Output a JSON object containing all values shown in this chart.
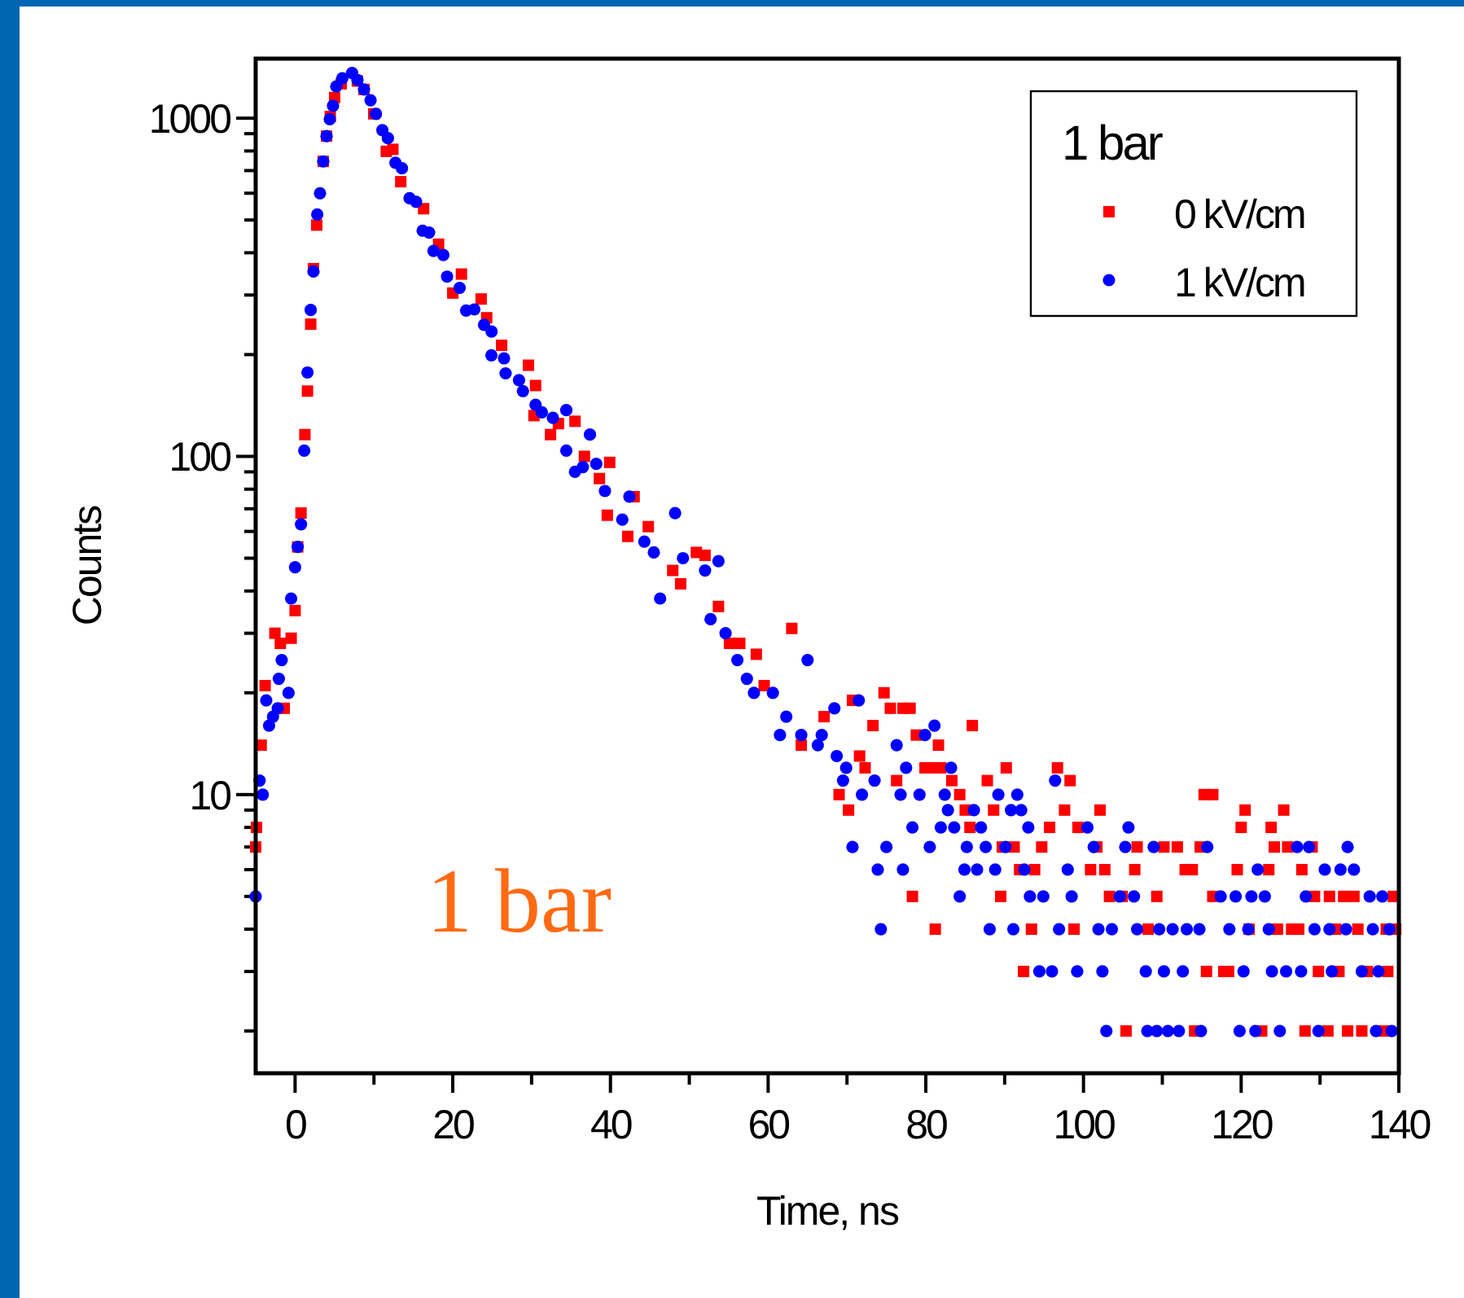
{
  "chart_data": {
    "type": "scatter",
    "xlabel": "Time, ns",
    "ylabel": "Counts",
    "legend_title": "1 bar",
    "legend": "top right",
    "log": "y",
    "grid": false,
    "annotations": [
      "1 bar"
    ],
    "xlim": [
      -5,
      140
    ],
    "xticks": [
      0,
      {
        "value": 10,
        "label": null
      },
      20,
      {
        "value": 30,
        "label": null
      },
      40,
      {
        "value": 50,
        "label": null
      },
      60,
      {
        "value": 70,
        "label": null
      },
      80,
      {
        "value": 90,
        "label": null
      },
      100,
      {
        "value": 110,
        "label": null
      },
      120,
      {
        "value": 130,
        "label": null
      },
      140
    ],
    "ylim": [
      1.5,
      1500
    ],
    "yticks": [
      {
        "value": 2,
        "label": null
      },
      {
        "value": 3,
        "label": null
      },
      {
        "value": 4,
        "label": null
      },
      {
        "value": 5,
        "label": null
      },
      {
        "value": 6,
        "label": null
      },
      {
        "value": 7,
        "label": null
      },
      {
        "value": 8,
        "label": null
      },
      {
        "value": 9,
        "label": null
      },
      10,
      {
        "value": 20,
        "label": null
      },
      {
        "value": 30,
        "label": null
      },
      {
        "value": 40,
        "label": null
      },
      {
        "value": 50,
        "label": null
      },
      {
        "value": 60,
        "label": null
      },
      {
        "value": 70,
        "label": null
      },
      {
        "value": 80,
        "label": null
      },
      {
        "value": 90,
        "label": null
      },
      100,
      {
        "value": 200,
        "label": null
      },
      {
        "value": 300,
        "label": null
      },
      {
        "value": 400,
        "label": null
      },
      {
        "value": 500,
        "label": null
      },
      {
        "value": 600,
        "label": null
      },
      {
        "value": 700,
        "label": null
      },
      {
        "value": 800,
        "label": null
      },
      {
        "value": 900,
        "label": null
      },
      1000
    ],
    "series": [
      {
        "name": "0 kV/cm",
        "color": "#ff0000",
        "marker": "square",
        "x": [
          -5,
          -4.9,
          -4.3,
          -3.8,
          -2.56,
          -1.87,
          -1.38,
          -0.5,
          0,
          0.33,
          0.75,
          1.24,
          1.57,
          1.98,
          2.33,
          2.75,
          3.57,
          3.99,
          4.46,
          5.02,
          5.85,
          7.9,
          8.74,
          9.98,
          11.57,
          12.4,
          13.4,
          16.3,
          18.2,
          20,
          21.1,
          23.6,
          24.3,
          26.2,
          29.6,
          30.5,
          30.3,
          32.4,
          33.4,
          35.5,
          36.7,
          38.6,
          39.9,
          39.6,
          42.2,
          43,
          44.8,
          47.9,
          48.9,
          50.9,
          52,
          53.7,
          55.1,
          56.4,
          58.5,
          59.5,
          63,
          64.2,
          67.1,
          69,
          70.2,
          70.7,
          71.6,
          72.3,
          73.3,
          74.7,
          75.5,
          76.3,
          77.1,
          78,
          78.3,
          78.8,
          79.9,
          80.8,
          81.2,
          81.6,
          81.9,
          83.3,
          84.3,
          85,
          85.6,
          85.9,
          87.8,
          88.6,
          89.5,
          90.2,
          89.7,
          91.2,
          91.9,
          92.4,
          93.4,
          93.8,
          94.7,
          95.7,
          96.7,
          97.6,
          98.3,
          98.8,
          99.3,
          100.9,
          101.7,
          102.1,
          102.7,
          103.3,
          104.9,
          105.4,
          106.5,
          106.8,
          108.2,
          109.3,
          110.2,
          111.9,
          112.9,
          113.8,
          114.1,
          114.8,
          115.3,
          116.4,
          116.4,
          115.6,
          117.8,
          118.4,
          119.5,
          120,
          120.5,
          121,
          122.6,
          123.5,
          123.8,
          124.2,
          124.6,
          125.4,
          125.9,
          126.4,
          127.3,
          127.7,
          128.1,
          129,
          129.3,
          129.8,
          131,
          131.2,
          132,
          132.4,
          133,
          133.5,
          134.3,
          134.8,
          135.3,
          136,
          138.1,
          138.4,
          138.6,
          139.3,
          139.6
        ],
        "values": [
          7,
          8,
          14,
          21,
          30,
          28,
          18,
          29,
          35,
          54,
          68,
          116,
          156,
          246,
          359,
          483,
          745,
          885,
          1011,
          1151,
          1263,
          1288,
          1216,
          1030,
          798,
          809,
          649,
          540,
          424,
          304,
          346,
          292,
          257,
          213,
          186,
          162,
          132,
          116,
          125,
          127,
          100,
          86,
          96,
          67,
          58,
          76,
          62,
          46,
          42,
          52,
          51,
          36,
          28,
          28,
          26,
          21,
          31,
          14,
          17,
          10,
          9,
          19,
          13,
          12,
          16,
          20,
          18,
          11,
          18,
          18,
          5,
          15,
          12,
          12,
          4,
          14,
          12,
          11,
          10,
          9,
          8,
          16,
          11,
          9,
          5,
          12,
          7,
          7,
          6,
          3,
          4,
          6,
          7,
          8,
          12,
          9,
          11,
          4,
          8,
          6,
          7,
          9,
          6,
          5,
          5,
          2,
          6,
          7,
          4,
          5,
          7,
          7,
          6,
          6,
          2,
          7,
          10,
          10,
          5,
          3,
          3,
          3,
          6,
          8,
          9,
          4,
          2,
          6,
          8,
          7,
          4,
          9,
          7,
          4,
          4,
          6,
          2,
          7,
          5,
          3,
          2,
          5,
          4,
          3,
          5,
          2,
          5,
          4,
          2,
          3,
          2,
          4,
          3,
          5,
          4
        ]
      },
      {
        "name": "1 kV/cm",
        "color": "#0000ff",
        "marker": "circle",
        "x": [
          -5,
          -4.5,
          -4.1,
          -3.66,
          -3.3,
          -2.8,
          -2.2,
          -2.06,
          -1.7,
          -0.83,
          -0.5,
          0,
          0.33,
          0.75,
          1.16,
          1.57,
          1.98,
          2.33,
          2.81,
          3.16,
          3.57,
          3.99,
          4.4,
          4.81,
          5.23,
          5.99,
          7.23,
          7.91,
          8.74,
          9.57,
          10.26,
          11.07,
          11.77,
          12.73,
          13.55,
          14.52,
          15.35,
          16.18,
          17,
          17.56,
          18.8,
          19.28,
          20.87,
          21.69,
          22.73,
          23.97,
          24.92,
          24.9,
          26.5,
          26.7,
          28.4,
          28.9,
          30.5,
          31.3,
          32.7,
          34.4,
          34.4,
          35.5,
          36.5,
          37.4,
          38.2,
          39.3,
          41.5,
          42.4,
          44.3,
          45.5,
          46.3,
          48.2,
          49.2,
          52,
          53.7,
          52.7,
          54.6,
          56.1,
          57.3,
          58.2,
          60.6,
          61.5,
          62.3,
          64.2,
          65,
          66.3,
          66.8,
          68.4,
          68.7,
          69.5,
          69.9,
          70.7,
          71.5,
          71.9,
          73.5,
          73.9,
          74.3,
          75,
          76.3,
          76.8,
          77.1,
          77.5,
          78.3,
          79.2,
          79.9,
          80.5,
          81.1,
          81.9,
          82.4,
          82.8,
          83.2,
          83.6,
          84.3,
          85.2,
          84.9,
          86.1,
          86.5,
          87,
          87.6,
          88.1,
          88.8,
          89.2,
          90.1,
          90.8,
          91.1,
          91.6,
          92.1,
          92.5,
          93.2,
          93,
          94.4,
          94.9,
          96,
          96.4,
          96.9,
          98,
          98.5,
          99.2,
          100.5,
          101.3,
          101.9,
          102.4,
          102.9,
          103.6,
          104.6,
          105.3,
          105.7,
          106.4,
          106.8,
          108.1,
          107.9,
          108.9,
          109.3,
          109.6,
          110.2,
          110.7,
          111.3,
          112.1,
          112.6,
          113.1,
          114.7,
          114.9,
          115.7,
          117.4,
          118.5,
          119.3,
          119.8,
          120.3,
          120.9,
          121.3,
          121.8,
          122.1,
          123,
          123.5,
          123.9,
          124.9,
          125.7,
          127.1,
          127.6,
          128.2,
          128.6,
          129.3,
          129.8,
          130.6,
          131.2,
          131.5,
          132.6,
          133.5,
          133.3,
          134.3,
          135.3,
          136.3,
          136.7,
          137.1,
          137.4,
          137.9,
          138.8,
          139.1
        ],
        "values": [
          5,
          11,
          10,
          19,
          16,
          17,
          18,
          22,
          25,
          20,
          38,
          47,
          54,
          63,
          104,
          177,
          271,
          352,
          519,
          600,
          745,
          885,
          993,
          1089,
          1241,
          1312,
          1361,
          1297,
          1216,
          1130,
          1030,
          922,
          873,
          738,
          711,
          580,
          566,
          465,
          459,
          405,
          394,
          340,
          315,
          270,
          272,
          245,
          234,
          199,
          195,
          176,
          168,
          156,
          142,
          135,
          130,
          137,
          104,
          90,
          93,
          116,
          95,
          79,
          65,
          76,
          56,
          52,
          38,
          68,
          50,
          46,
          49,
          33,
          30,
          25,
          22,
          20,
          20,
          15,
          17,
          15,
          25,
          14,
          15,
          18,
          13,
          11,
          12,
          7,
          19,
          10,
          11,
          6,
          4,
          7,
          14,
          10,
          6,
          12,
          8,
          10,
          15,
          7,
          16,
          8,
          10,
          9,
          12,
          8,
          5,
          7,
          6,
          9,
          6,
          8,
          7,
          4,
          6,
          10,
          7,
          9,
          4,
          10,
          9,
          6,
          5,
          8,
          3,
          5,
          3,
          11,
          4,
          6,
          5,
          3,
          8,
          7,
          4,
          3,
          2,
          4,
          5,
          7,
          8,
          5,
          4,
          2,
          3,
          7,
          2,
          4,
          3,
          2,
          4,
          2,
          3,
          4,
          4,
          2,
          7,
          5,
          4,
          5,
          2,
          3,
          4,
          5,
          2,
          6,
          5,
          4,
          3,
          2,
          3,
          7,
          3,
          5,
          7,
          4,
          2,
          6,
          4,
          3,
          6,
          7,
          4,
          6,
          3,
          5,
          4,
          2,
          3,
          5,
          4,
          2
        ]
      }
    ]
  }
}
